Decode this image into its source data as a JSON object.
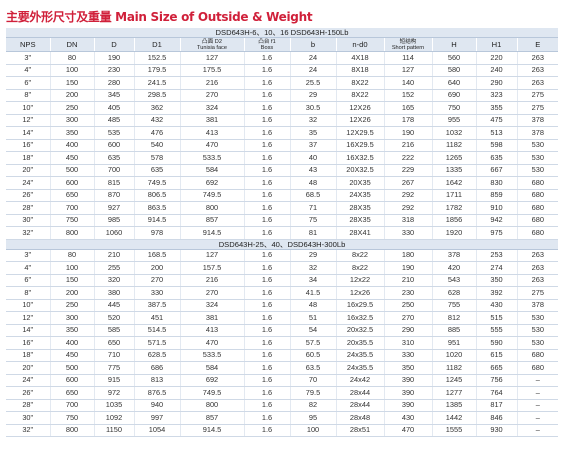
{
  "title": "主要外形尺寸及重量 Main Size of Outside & Weight",
  "columns": [
    "NPS",
    "DN",
    "D",
    "D1",
    "凸面 D2",
    "Tunisia face",
    "凸台 f1",
    "Boss",
    "b",
    "n-d0",
    "短结构",
    "Short pattern",
    "H",
    "H1",
    "E"
  ],
  "section1_label": "DSD643H-6、10、16 DSD643H-150Lb",
  "section1_rows": [
    [
      "3\"",
      "80",
      "190",
      "152.5",
      "127",
      "1.6",
      "24",
      "4X18",
      "114",
      "560",
      "220",
      "263"
    ],
    [
      "4\"",
      "100",
      "230",
      "179.5",
      "175.5",
      "1.6",
      "24",
      "8X18",
      "127",
      "580",
      "240",
      "263"
    ],
    [
      "6\"",
      "150",
      "280",
      "241.5",
      "216",
      "1.6",
      "25.5",
      "8X22",
      "140",
      "640",
      "290",
      "263"
    ],
    [
      "8\"",
      "200",
      "345",
      "298.5",
      "270",
      "1.6",
      "29",
      "8X22",
      "152",
      "690",
      "323",
      "275"
    ],
    [
      "10\"",
      "250",
      "405",
      "362",
      "324",
      "1.6",
      "30.5",
      "12X26",
      "165",
      "750",
      "355",
      "275"
    ],
    [
      "12\"",
      "300",
      "485",
      "432",
      "381",
      "1.6",
      "32",
      "12X26",
      "178",
      "955",
      "475",
      "378"
    ],
    [
      "14\"",
      "350",
      "535",
      "476",
      "413",
      "1.6",
      "35",
      "12X29.5",
      "190",
      "1032",
      "513",
      "378"
    ],
    [
      "16\"",
      "400",
      "600",
      "540",
      "470",
      "1.6",
      "37",
      "16X29.5",
      "216",
      "1182",
      "598",
      "530"
    ],
    [
      "18\"",
      "450",
      "635",
      "578",
      "533.5",
      "1.6",
      "40",
      "16X32.5",
      "222",
      "1265",
      "635",
      "530"
    ],
    [
      "20\"",
      "500",
      "700",
      "635",
      "584",
      "1.6",
      "43",
      "20X32.5",
      "229",
      "1335",
      "667",
      "530"
    ],
    [
      "24\"",
      "600",
      "815",
      "749.5",
      "692",
      "1.6",
      "48",
      "20X35",
      "267",
      "1642",
      "830",
      "680"
    ],
    [
      "26\"",
      "650",
      "870",
      "806.5",
      "749.5",
      "1.6",
      "68.5",
      "24X35",
      "292",
      "1711",
      "859",
      "680"
    ],
    [
      "28\"",
      "700",
      "927",
      "863.5",
      "800",
      "1.6",
      "71",
      "28X35",
      "292",
      "1782",
      "910",
      "680"
    ],
    [
      "30\"",
      "750",
      "985",
      "914.5",
      "857",
      "1.6",
      "75",
      "28X35",
      "318",
      "1856",
      "942",
      "680"
    ],
    [
      "32\"",
      "800",
      "1060",
      "978",
      "914.5",
      "1.6",
      "81",
      "28X41",
      "330",
      "1920",
      "975",
      "680"
    ]
  ],
  "section2_label": "DSD643H-25、40、DSD643H-300Lb",
  "section2_rows": [
    [
      "3\"",
      "80",
      "210",
      "168.5",
      "127",
      "1.6",
      "29",
      "8x22",
      "180",
      "378",
      "253",
      "263"
    ],
    [
      "4\"",
      "100",
      "255",
      "200",
      "157.5",
      "1.6",
      "32",
      "8x22",
      "190",
      "420",
      "274",
      "263"
    ],
    [
      "6\"",
      "150",
      "320",
      "270",
      "216",
      "1.6",
      "34",
      "12x22",
      "210",
      "543",
      "350",
      "263"
    ],
    [
      "8\"",
      "200",
      "380",
      "330",
      "270",
      "1.6",
      "41.5",
      "12x26",
      "230",
      "628",
      "392",
      "275"
    ],
    [
      "10\"",
      "250",
      "445",
      "387.5",
      "324",
      "1.6",
      "48",
      "16x29.5",
      "250",
      "755",
      "430",
      "378"
    ],
    [
      "12\"",
      "300",
      "520",
      "451",
      "381",
      "1.6",
      "51",
      "16x32.5",
      "270",
      "812",
      "515",
      "530"
    ],
    [
      "14\"",
      "350",
      "585",
      "514.5",
      "413",
      "1.6",
      "54",
      "20x32.5",
      "290",
      "885",
      "555",
      "530"
    ],
    [
      "16\"",
      "400",
      "650",
      "571.5",
      "470",
      "1.6",
      "57.5",
      "20x35.5",
      "310",
      "951",
      "590",
      "530"
    ],
    [
      "18\"",
      "450",
      "710",
      "628.5",
      "533.5",
      "1.6",
      "60.5",
      "24x35.5",
      "330",
      "1020",
      "615",
      "680"
    ],
    [
      "20\"",
      "500",
      "775",
      "686",
      "584",
      "1.6",
      "63.5",
      "24x35.5",
      "350",
      "1182",
      "665",
      "680"
    ],
    [
      "24\"",
      "600",
      "915",
      "813",
      "692",
      "1.6",
      "70",
      "24x42",
      "390",
      "1245",
      "756",
      "–"
    ],
    [
      "26\"",
      "650",
      "972",
      "876.5",
      "749.5",
      "1.6",
      "79.5",
      "28x44",
      "390",
      "1277",
      "764",
      "–"
    ],
    [
      "28\"",
      "700",
      "1035",
      "940",
      "800",
      "1.6",
      "82",
      "28x44",
      "390",
      "1385",
      "817",
      "–"
    ],
    [
      "30\"",
      "750",
      "1092",
      "997",
      "857",
      "1.6",
      "95",
      "28x48",
      "430",
      "1442",
      "846",
      "–"
    ],
    [
      "32\"",
      "800",
      "1150",
      "1054",
      "914.5",
      "1.6",
      "100",
      "28x51",
      "470",
      "1555",
      "930",
      "–"
    ]
  ]
}
